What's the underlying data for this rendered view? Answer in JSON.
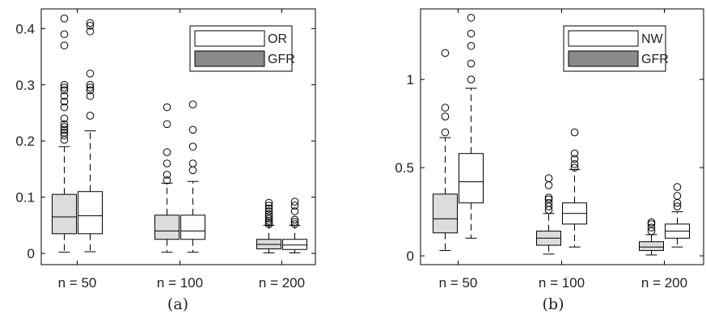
{
  "colors": {
    "gfr_fill": "#dcdcdc",
    "legend_gfr_fill": "#8a8a8a",
    "other_fill": "#ffffff",
    "stroke": "#000000"
  },
  "chart_data": [
    {
      "type": "box",
      "caption": "(a)",
      "categories": [
        "n = 50",
        "n = 100",
        "n = 200"
      ],
      "ylim": [
        -0.02,
        0.435
      ],
      "yticks": [
        "0",
        "0.1",
        "0.2",
        "0.3",
        "0.4"
      ],
      "yticks_values": [
        0,
        0.1,
        0.2,
        0.3,
        0.4
      ],
      "legend": {
        "position": "top-right",
        "entries": [
          "OR",
          "GFR"
        ]
      },
      "series": [
        {
          "name": "GFR",
          "boxes": [
            {
              "q1": 0.035,
              "median": 0.065,
              "q3": 0.105,
              "whisker_low": 0.002,
              "whisker_high": 0.19,
              "outliers": [
                0.202,
                0.21,
                0.215,
                0.22,
                0.225,
                0.23,
                0.24,
                0.26,
                0.27,
                0.28,
                0.29,
                0.295,
                0.3,
                0.37,
                0.39,
                0.418
              ]
            },
            {
              "q1": 0.025,
              "median": 0.04,
              "q3": 0.068,
              "whisker_low": 0.002,
              "whisker_high": 0.125,
              "outliers": [
                0.13,
                0.14,
                0.16,
                0.18,
                0.23,
                0.26
              ]
            },
            {
              "q1": 0.008,
              "median": 0.016,
              "q3": 0.025,
              "whisker_low": 0.001,
              "whisker_high": 0.05,
              "outliers": [
                0.052,
                0.055,
                0.058,
                0.062,
                0.066,
                0.07,
                0.075,
                0.08,
                0.085,
                0.09
              ]
            }
          ]
        },
        {
          "name": "OR",
          "boxes": [
            {
              "q1": 0.035,
              "median": 0.067,
              "q3": 0.11,
              "whisker_low": 0.003,
              "whisker_high": 0.218,
              "outliers": [
                0.245,
                0.28,
                0.29,
                0.295,
                0.3,
                0.32,
                0.395,
                0.405,
                0.41
              ]
            },
            {
              "q1": 0.025,
              "median": 0.04,
              "q3": 0.068,
              "whisker_low": 0.002,
              "whisker_high": 0.128,
              "outliers": [
                0.148,
                0.16,
                0.19,
                0.22,
                0.265
              ]
            },
            {
              "q1": 0.007,
              "median": 0.015,
              "q3": 0.025,
              "whisker_low": 0.001,
              "whisker_high": 0.05,
              "outliers": [
                0.052,
                0.056,
                0.06,
                0.075,
                0.085,
                0.092
              ]
            }
          ]
        }
      ]
    },
    {
      "type": "box",
      "caption": "(b)",
      "categories": [
        "n = 50",
        "n = 100",
        "n = 200"
      ],
      "ylim": [
        -0.05,
        1.4
      ],
      "yticks": [
        "0",
        "0.5",
        "1"
      ],
      "yticks_values": [
        0,
        0.5,
        1
      ],
      "legend": {
        "position": "top-right",
        "entries": [
          "NW",
          "GFR"
        ]
      },
      "series": [
        {
          "name": "GFR",
          "boxes": [
            {
              "q1": 0.13,
              "median": 0.21,
              "q3": 0.35,
              "whisker_low": 0.03,
              "whisker_high": 0.67,
              "outliers": [
                0.7,
                0.79,
                0.84,
                1.15
              ]
            },
            {
              "q1": 0.06,
              "median": 0.1,
              "q3": 0.14,
              "whisker_low": 0.01,
              "whisker_high": 0.24,
              "outliers": [
                0.26,
                0.28,
                0.3,
                0.32,
                0.33,
                0.4,
                0.44
              ]
            },
            {
              "q1": 0.03,
              "median": 0.05,
              "q3": 0.08,
              "whisker_low": 0.005,
              "whisker_high": 0.12,
              "outliers": [
                0.14,
                0.16,
                0.18,
                0.19
              ]
            }
          ]
        },
        {
          "name": "NW",
          "boxes": [
            {
              "q1": 0.3,
              "median": 0.42,
              "q3": 0.58,
              "whisker_low": 0.1,
              "whisker_high": 0.95,
              "outliers": [
                1.0,
                1.09,
                1.19,
                1.26,
                1.35
              ]
            },
            {
              "q1": 0.18,
              "median": 0.24,
              "q3": 0.3,
              "whisker_low": 0.05,
              "whisker_high": 0.49,
              "outliers": [
                0.5,
                0.52,
                0.55,
                0.58,
                0.7
              ]
            },
            {
              "q1": 0.1,
              "median": 0.14,
              "q3": 0.18,
              "whisker_low": 0.05,
              "whisker_high": 0.25,
              "outliers": [
                0.28,
                0.3,
                0.34,
                0.39
              ]
            }
          ]
        }
      ]
    }
  ]
}
